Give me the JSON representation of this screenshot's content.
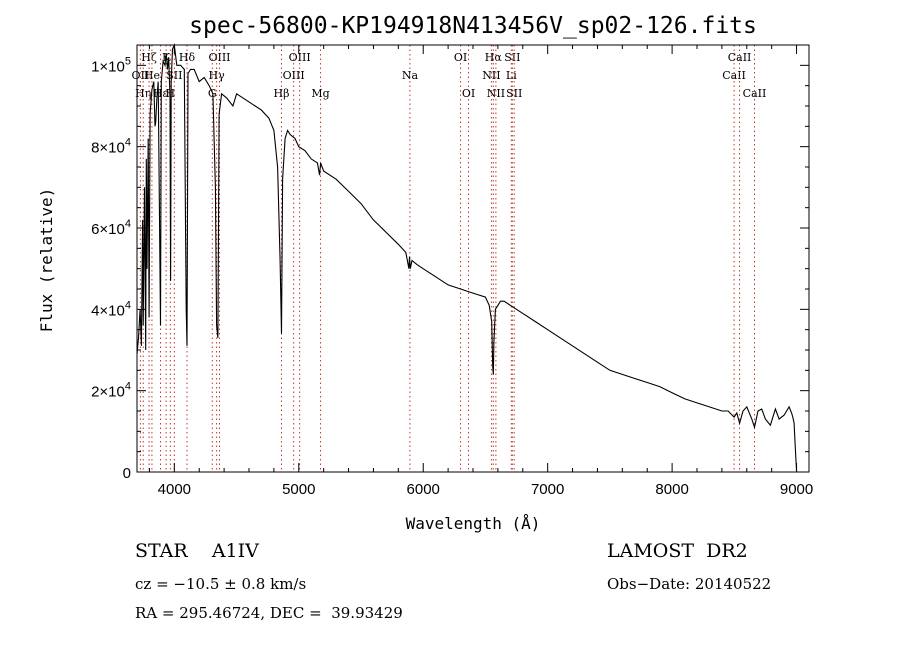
{
  "chart_data": {
    "type": "line",
    "title": "spec-56800-KP194918N413456V_sp02-126.fits",
    "xlabel": "Wavelength (Å)",
    "ylabel": "Flux (relative)",
    "xlim": [
      3700,
      9100
    ],
    "ylim": [
      0,
      105000
    ],
    "x_ticks": [
      {
        "value": 4000,
        "label": "4000"
      },
      {
        "value": 5000,
        "label": "5000"
      },
      {
        "value": 6000,
        "label": "6000"
      },
      {
        "value": 7000,
        "label": "7000"
      },
      {
        "value": 8000,
        "label": "8000"
      },
      {
        "value": 9000,
        "label": "9000"
      }
    ],
    "y_ticks": [
      {
        "value": 0,
        "mant": "0",
        "exp": ""
      },
      {
        "value": 20000,
        "mant": "2×10",
        "exp": "4"
      },
      {
        "value": 40000,
        "mant": "4×10",
        "exp": "4"
      },
      {
        "value": 60000,
        "mant": "6×10",
        "exp": "4"
      },
      {
        "value": 80000,
        "mant": "8×10",
        "exp": "4"
      },
      {
        "value": 100000,
        "mant": "1×10",
        "exp": "5"
      }
    ],
    "grid": false,
    "legend": "none",
    "line_color": "#000000",
    "marker_color": "#c0392b",
    "series": [
      {
        "x": [
          3700,
          3712,
          3725,
          3735,
          3745,
          3750,
          3760,
          3770,
          3775,
          3780,
          3790,
          3797,
          3805,
          3820,
          3835,
          3845,
          3850,
          3860,
          3870,
          3882,
          3889,
          3895,
          3910,
          3925,
          3935,
          3945,
          3955,
          3965,
          3970,
          3975,
          3985,
          4000,
          4020,
          4050,
          4080,
          4095,
          4102,
          4110,
          4130,
          4160,
          4200,
          4240,
          4280,
          4310,
          4330,
          4340,
          4350,
          4360,
          4380,
          4420,
          4471,
          4500,
          4600,
          4700,
          4760,
          4800,
          4830,
          4850,
          4861,
          4870,
          4890,
          4910,
          4930,
          4970,
          5000,
          5050,
          5100,
          5150,
          5167,
          5175,
          5200,
          5300,
          5400,
          5500,
          5600,
          5700,
          5800,
          5860,
          5885,
          5890,
          5896,
          5910,
          5950,
          6000,
          6100,
          6200,
          6300,
          6400,
          6500,
          6530,
          6550,
          6558,
          6563,
          6568,
          6580,
          6600,
          6620,
          6650,
          6700,
          6800,
          6900,
          7000,
          7100,
          7200,
          7300,
          7400,
          7500,
          7600,
          7700,
          7800,
          7900,
          8000,
          8100,
          8200,
          8300,
          8400,
          8450,
          8498,
          8520,
          8542,
          8570,
          8600,
          8640,
          8662,
          8690,
          8720,
          8750,
          8790,
          8830,
          8860,
          8900,
          8940,
          8960,
          8970,
          8980,
          8990,
          9000
        ],
        "y": [
          29000,
          33000,
          40000,
          31000,
          62000,
          36000,
          70000,
          30000,
          77000,
          50000,
          82000,
          38000,
          88000,
          94000,
          96000,
          85000,
          86000,
          92000,
          96000,
          60000,
          36000,
          96000,
          101000,
          100000,
          103000,
          99000,
          102000,
          92000,
          47000,
          96000,
          104000,
          105000,
          100000,
          100000,
          99000,
          40000,
          31000,
          98000,
          99000,
          99000,
          96000,
          97000,
          95000,
          93000,
          70000,
          36000,
          33000,
          88000,
          93000,
          92000,
          90000,
          93000,
          91000,
          89000,
          87000,
          84000,
          75000,
          52000,
          34000,
          72000,
          82000,
          84000,
          83000,
          82000,
          80000,
          79000,
          77000,
          76000,
          73000,
          76000,
          74000,
          72000,
          69000,
          66000,
          62000,
          59000,
          56000,
          54000,
          50000,
          53000,
          50000,
          52000,
          51000,
          50000,
          48000,
          46000,
          45000,
          44000,
          43000,
          41000,
          37000,
          26000,
          24000,
          32000,
          40000,
          41000,
          42000,
          42000,
          41000,
          39000,
          37000,
          35000,
          33000,
          31000,
          29000,
          27000,
          25000,
          24000,
          23000,
          22000,
          21000,
          19500,
          18000,
          17000,
          16000,
          15000,
          15000,
          13500,
          14500,
          12000,
          15000,
          16000,
          13000,
          11000,
          15000,
          15500,
          13000,
          11500,
          15500,
          13000,
          14000,
          16000,
          14500,
          13500,
          12000,
          6000,
          0
        ]
      }
    ],
    "line_markers": [
      {
        "name": "OII",
        "wl": 3727,
        "row": 1
      },
      {
        "name": "Hη",
        "wl": 3750,
        "row": 2
      },
      {
        "name": "Hζ",
        "wl": 3797,
        "row": 0
      },
      {
        "name": "He",
        "wl": 3820,
        "row": 1
      },
      {
        "name": "Hε",
        "wl": 3889,
        "row": 2
      },
      {
        "name": "K",
        "wl": 3934,
        "row": 0
      },
      {
        "name": "H",
        "wl": 3968,
        "row": 2
      },
      {
        "name": "SII",
        "wl": 4000,
        "row": 1
      },
      {
        "name": "Hδ",
        "wl": 4102,
        "row": 0
      },
      {
        "name": "G",
        "wl": 4305,
        "row": 2
      },
      {
        "name": "Hγ",
        "wl": 4340,
        "row": 1
      },
      {
        "name": "OIII",
        "wl": 4363,
        "row": 0
      },
      {
        "name": "Hβ",
        "wl": 4861,
        "row": 2
      },
      {
        "name": "OIII",
        "wl": 4959,
        "row": 1
      },
      {
        "name": "OIII",
        "wl": 5007,
        "row": 0
      },
      {
        "name": "Mg",
        "wl": 5175,
        "row": 2
      },
      {
        "name": "Na",
        "wl": 5893,
        "row": 1
      },
      {
        "name": "OI",
        "wl": 6300,
        "row": 0
      },
      {
        "name": "OI",
        "wl": 6364,
        "row": 2
      },
      {
        "name": "NII",
        "wl": 6548,
        "row": 1
      },
      {
        "name": "Hα",
        "wl": 6563,
        "row": 0
      },
      {
        "name": "NII",
        "wl": 6584,
        "row": 2
      },
      {
        "name": "Li",
        "wl": 6708,
        "row": 1
      },
      {
        "name": "SII",
        "wl": 6716,
        "row": 0
      },
      {
        "name": "SII",
        "wl": 6731,
        "row": 2
      },
      {
        "name": "CaII",
        "wl": 8498,
        "row": 1
      },
      {
        "name": "CaII",
        "wl": 8542,
        "row": 0
      },
      {
        "name": "CaII",
        "wl": 8662,
        "row": 2
      }
    ]
  },
  "info": {
    "class_text": "STAR    A1IV",
    "survey": "LAMOST  DR2",
    "cz": "cz = −10.5 ± 0.8 km/s",
    "obs_date": "Obs−Date: 20140522",
    "radec": "RA = 295.46724, DEC =  39.93429"
  }
}
